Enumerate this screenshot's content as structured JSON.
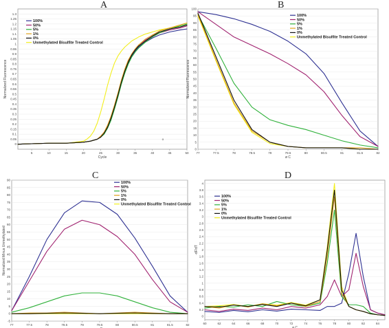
{
  "chart_data": [
    {
      "panel": "A",
      "type": "line",
      "xlabel": "Cycle",
      "ylabel": "Normalized Fluorescence",
      "xlim": [
        1,
        50
      ],
      "ylim": [
        -0.05,
        1.35
      ],
      "xticks": [
        5,
        10,
        15,
        20,
        25,
        30,
        35,
        40,
        45,
        50
      ],
      "yticks": [
        0,
        0.05,
        0.1,
        0.15,
        0.2,
        0.25,
        0.3,
        0.35,
        0.4,
        0.45,
        0.5,
        0.55,
        0.6,
        0.65,
        0.7,
        0.75,
        0.8,
        0.85,
        0.9,
        0.95,
        1,
        1.05,
        1.1,
        1.15,
        1.2,
        1.25,
        1.3
      ],
      "annotations": [
        {
          "text": "o",
          "x": 43,
          "y": 0.04
        }
      ],
      "series": [
        {
          "name": "100%",
          "color": "#2e3192",
          "x": [
            1,
            5,
            10,
            15,
            20,
            22,
            24,
            25,
            26,
            27,
            28,
            29,
            30,
            31,
            32,
            33,
            34,
            35,
            36,
            38,
            40,
            42,
            45,
            48,
            50
          ],
          "y": [
            0,
            0.005,
            0.01,
            0.01,
            0.02,
            0.03,
            0.05,
            0.07,
            0.11,
            0.17,
            0.25,
            0.36,
            0.48,
            0.61,
            0.72,
            0.81,
            0.88,
            0.93,
            0.97,
            1.02,
            1.06,
            1.09,
            1.12,
            1.14,
            1.15
          ]
        },
        {
          "name": "50%",
          "color": "#a0226f",
          "x": [
            1,
            5,
            10,
            15,
            20,
            22,
            24,
            25,
            26,
            27,
            28,
            29,
            30,
            31,
            32,
            33,
            34,
            35,
            36,
            38,
            40,
            42,
            45,
            48,
            50
          ],
          "y": [
            0,
            0.005,
            0.01,
            0.01,
            0.02,
            0.03,
            0.05,
            0.08,
            0.12,
            0.18,
            0.27,
            0.38,
            0.5,
            0.63,
            0.74,
            0.83,
            0.9,
            0.95,
            0.99,
            1.04,
            1.08,
            1.11,
            1.14,
            1.16,
            1.18
          ]
        },
        {
          "name": "5%",
          "color": "#2fb13a",
          "x": [
            1,
            5,
            10,
            15,
            20,
            22,
            24,
            25,
            26,
            27,
            28,
            29,
            30,
            31,
            32,
            33,
            34,
            35,
            36,
            38,
            40,
            42,
            45,
            48,
            50
          ],
          "y": [
            0,
            0.005,
            0.01,
            0.01,
            0.02,
            0.03,
            0.05,
            0.07,
            0.1,
            0.16,
            0.24,
            0.35,
            0.47,
            0.6,
            0.71,
            0.8,
            0.87,
            0.92,
            0.96,
            1.02,
            1.07,
            1.11,
            1.15,
            1.18,
            1.2
          ]
        },
        {
          "name": "1%",
          "color": "#e0a21a",
          "x": [
            1,
            5,
            10,
            15,
            20,
            22,
            24,
            25,
            26,
            27,
            28,
            29,
            30,
            31,
            32,
            33,
            34,
            35,
            36,
            38,
            40,
            42,
            45,
            48,
            50
          ],
          "y": [
            0,
            0.005,
            0.01,
            0.01,
            0.02,
            0.03,
            0.05,
            0.08,
            0.12,
            0.19,
            0.28,
            0.39,
            0.51,
            0.64,
            0.75,
            0.84,
            0.9,
            0.95,
            0.99,
            1.05,
            1.09,
            1.13,
            1.16,
            1.19,
            1.21
          ]
        },
        {
          "name": "0%",
          "color": "#111111",
          "x": [
            1,
            5,
            10,
            15,
            20,
            22,
            24,
            25,
            26,
            27,
            28,
            29,
            30,
            31,
            32,
            33,
            34,
            35,
            36,
            38,
            40,
            42,
            45,
            48,
            50
          ],
          "y": [
            0,
            0.005,
            0.01,
            0.01,
            0.02,
            0.03,
            0.05,
            0.07,
            0.11,
            0.17,
            0.26,
            0.37,
            0.49,
            0.62,
            0.73,
            0.82,
            0.89,
            0.94,
            0.98,
            1.03,
            1.08,
            1.12,
            1.15,
            1.17,
            1.19
          ]
        },
        {
          "name": "Unmethylated Bisulfite Treated Control",
          "color": "#f2ee1a",
          "x": [
            1,
            5,
            10,
            15,
            20,
            21,
            22,
            23,
            24,
            25,
            26,
            27,
            28,
            29,
            30,
            31,
            32,
            34,
            36,
            38,
            40,
            42,
            45,
            48,
            50
          ],
          "y": [
            0,
            0.005,
            0.01,
            0.01,
            0.03,
            0.05,
            0.08,
            0.13,
            0.21,
            0.32,
            0.45,
            0.59,
            0.71,
            0.81,
            0.88,
            0.93,
            0.97,
            1.03,
            1.07,
            1.1,
            1.12,
            1.14,
            1.16,
            1.18,
            1.2
          ]
        }
      ]
    },
    {
      "panel": "B",
      "type": "line",
      "xlabel": "ø C",
      "ylabel": "Normalized Fluorescence",
      "xlim": [
        77,
        82
      ],
      "ylim": [
        0,
        100
      ],
      "xticks": [
        77,
        77.5,
        78,
        78.5,
        79,
        79.5,
        80,
        80.5,
        81,
        81.5,
        82
      ],
      "xtick_labels": [
        "77",
        "77.5",
        "78",
        "78.5",
        "79",
        "79.5",
        "80",
        "80.5",
        "81",
        "81.5",
        "82"
      ],
      "yticks": [
        0,
        5,
        10,
        15,
        20,
        25,
        30,
        35,
        40,
        45,
        50,
        55,
        60,
        65,
        70,
        75,
        80,
        85,
        90,
        95,
        100
      ],
      "series": [
        {
          "name": "100%",
          "color": "#2e3192",
          "x": [
            77,
            77.5,
            78,
            78.5,
            79,
            79.5,
            80,
            80.5,
            81,
            81.5,
            82
          ],
          "y": [
            98,
            96,
            93,
            89,
            84,
            77,
            68,
            54,
            33,
            13,
            2
          ]
        },
        {
          "name": "50%",
          "color": "#a0226f",
          "x": [
            77,
            77.5,
            78,
            78.5,
            79,
            79.5,
            80,
            80.5,
            81,
            81.5,
            82
          ],
          "y": [
            98,
            89,
            80,
            74,
            68,
            61,
            53,
            41,
            24,
            9,
            2
          ]
        },
        {
          "name": "5%",
          "color": "#2fb13a",
          "x": [
            77,
            77.5,
            78,
            78.5,
            79,
            79.5,
            80,
            80.5,
            81,
            81.5,
            82
          ],
          "y": [
            96,
            72,
            47,
            30,
            21,
            17,
            14,
            10,
            6,
            3,
            1
          ]
        },
        {
          "name": "1%",
          "color": "#e0a21a",
          "x": [
            77,
            77.5,
            78,
            78.5,
            79,
            79.5,
            80,
            80.5,
            81,
            81.5,
            82
          ],
          "y": [
            96,
            64,
            33,
            13,
            5,
            2,
            1,
            1,
            1,
            1,
            0
          ]
        },
        {
          "name": "0%",
          "color": "#111111",
          "x": [
            77,
            77.5,
            78,
            78.5,
            79,
            79.5,
            80,
            80.5,
            81,
            81.5,
            82
          ],
          "y": [
            97,
            66,
            35,
            14,
            5,
            2,
            1,
            1,
            1,
            0,
            0
          ]
        },
        {
          "name": "Unmethylated Bisulfite Treated Control",
          "color": "#f2ee1a",
          "x": [
            77,
            77.5,
            78,
            78.5,
            79,
            79.5,
            80,
            80.5,
            81,
            81.5,
            82
          ],
          "y": [
            95,
            63,
            32,
            12,
            4,
            2,
            1,
            1,
            1,
            0,
            0
          ]
        }
      ]
    },
    {
      "panel": "C",
      "type": "line",
      "xlabel": "ø C",
      "ylabel": "Normalized Minus Unmethylated",
      "xlim": [
        77,
        82
      ],
      "ylim": [
        -5,
        90
      ],
      "xticks": [
        77,
        77.5,
        78,
        78.5,
        79,
        79.5,
        80,
        80.5,
        81,
        81.5,
        82
      ],
      "xtick_labels": [
        "77",
        "77.5",
        "78",
        "78.5",
        "79",
        "79.5",
        "80",
        "80.5",
        "81",
        "81.5",
        "82"
      ],
      "yticks": [
        -5,
        0,
        5,
        10,
        15,
        20,
        25,
        30,
        35,
        40,
        45,
        50,
        55,
        60,
        65,
        70,
        75,
        80,
        85,
        90
      ],
      "series": [
        {
          "name": "100%",
          "color": "#2e3192",
          "x": [
            77,
            77.5,
            78,
            78.5,
            79,
            79.5,
            80,
            80.5,
            81,
            81.5,
            82
          ],
          "y": [
            2,
            25,
            50,
            68,
            76,
            75,
            67,
            51,
            32,
            12,
            1
          ]
        },
        {
          "name": "50%",
          "color": "#a0226f",
          "x": [
            77,
            77.5,
            78,
            78.5,
            79,
            79.5,
            80,
            80.5,
            81,
            81.5,
            82
          ],
          "y": [
            2,
            22,
            42,
            57,
            63,
            60,
            52,
            40,
            23,
            8,
            1
          ]
        },
        {
          "name": "5%",
          "color": "#2fb13a",
          "x": [
            77,
            77.5,
            78,
            78.5,
            79,
            79.5,
            80,
            80.5,
            81,
            81.5,
            82
          ],
          "y": [
            1,
            4,
            8,
            12,
            14,
            14,
            12,
            8,
            4,
            1,
            0
          ]
        },
        {
          "name": "1%",
          "color": "#e0a21a",
          "x": [
            77,
            77.5,
            78,
            78.5,
            79,
            79.5,
            80,
            80.5,
            81,
            81.5,
            82
          ],
          "y": [
            0,
            0.5,
            0.5,
            1,
            0.5,
            0,
            0.5,
            1,
            0.5,
            0,
            0
          ]
        },
        {
          "name": "0%",
          "color": "#111111",
          "x": [
            77,
            77.5,
            78,
            78.5,
            79,
            79.5,
            80,
            80.5,
            81,
            81.5,
            82
          ],
          "y": [
            0,
            0,
            0.3,
            0.5,
            0.3,
            0,
            0.3,
            0.5,
            0.2,
            0,
            0
          ]
        },
        {
          "name": "Unmethylated Bisulfite Treated Control",
          "color": "#f2ee1a",
          "x": [
            77,
            77.5,
            78,
            78.5,
            79,
            79.5,
            80,
            80.5,
            81,
            81.5,
            82
          ],
          "y": [
            0,
            0,
            0,
            0,
            0,
            0,
            0,
            0,
            0,
            0,
            0
          ]
        }
      ]
    },
    {
      "panel": "D",
      "type": "line",
      "xlabel": "ø C",
      "ylabel": "-dF/dT",
      "xlim": [
        60,
        85
      ],
      "ylim": [
        -0.1,
        4.1
      ],
      "xticks": [
        60,
        62,
        64,
        66,
        68,
        70,
        72,
        74,
        76,
        78,
        80,
        82,
        84
      ],
      "yticks": [
        0,
        0.2,
        0.4,
        0.6,
        0.8,
        1,
        1.2,
        1.4,
        1.6,
        1.8,
        2,
        2.2,
        2.4,
        2.6,
        2.8,
        3,
        3.2,
        3.4,
        3.6,
        3.8,
        4
      ],
      "series": [
        {
          "name": "100%",
          "color": "#2e3192",
          "x": [
            60,
            62,
            64,
            66,
            68,
            70,
            72,
            74,
            76,
            77,
            78,
            79,
            80,
            81,
            82,
            83,
            84,
            85
          ],
          "y": [
            0.15,
            0.12,
            0.18,
            0.14,
            0.2,
            0.16,
            0.22,
            0.2,
            0.18,
            0.3,
            0.3,
            0.4,
            1.3,
            2.5,
            1.2,
            0.2,
            0.1,
            0.05
          ]
        },
        {
          "name": "50%",
          "color": "#a0226f",
          "x": [
            60,
            62,
            64,
            66,
            68,
            70,
            72,
            74,
            76,
            77,
            78,
            79,
            80,
            81,
            82,
            83,
            84,
            85
          ],
          "y": [
            0.2,
            0.15,
            0.22,
            0.18,
            0.25,
            0.2,
            0.3,
            0.25,
            0.35,
            0.6,
            1.1,
            0.6,
            0.8,
            1.9,
            0.9,
            0.2,
            0.1,
            0.05
          ]
        },
        {
          "name": "5%",
          "color": "#2fb13a",
          "x": [
            60,
            62,
            64,
            66,
            68,
            70,
            72,
            74,
            76,
            77,
            78,
            79,
            80,
            81,
            82,
            83,
            84,
            85
          ],
          "y": [
            0.25,
            0.3,
            0.28,
            0.35,
            0.3,
            0.45,
            0.35,
            0.3,
            0.4,
            1.6,
            3.2,
            0.6,
            0.35,
            0.35,
            0.3,
            0.1,
            0.05,
            0.03
          ]
        },
        {
          "name": "1%",
          "color": "#e0a21a",
          "x": [
            60,
            62,
            64,
            66,
            68,
            70,
            72,
            74,
            76,
            77,
            78,
            79,
            80,
            81,
            82,
            83,
            84,
            85
          ],
          "y": [
            0.3,
            0.25,
            0.35,
            0.28,
            0.38,
            0.32,
            0.4,
            0.3,
            0.45,
            1.8,
            3.6,
            0.7,
            0.3,
            0.2,
            0.15,
            0.08,
            0.05,
            0.03
          ]
        },
        {
          "name": "0%",
          "color": "#111111",
          "x": [
            60,
            62,
            64,
            66,
            68,
            70,
            72,
            74,
            76,
            77,
            78,
            79,
            80,
            81,
            82,
            83,
            84,
            85
          ],
          "y": [
            0.3,
            0.28,
            0.34,
            0.3,
            0.36,
            0.3,
            0.4,
            0.32,
            0.5,
            2,
            3.8,
            0.8,
            0.3,
            0.2,
            0.15,
            0.08,
            0.05,
            0.03
          ]
        },
        {
          "name": "Unmethylated Bisulfite Treated Control",
          "color": "#f2ee1a",
          "x": [
            60,
            62,
            64,
            66,
            68,
            70,
            72,
            74,
            76,
            77,
            78,
            79,
            80,
            81,
            82,
            83,
            84,
            85
          ],
          "y": [
            0.3,
            0.32,
            0.36,
            0.3,
            0.38,
            0.34,
            0.42,
            0.34,
            0.5,
            2.1,
            4,
            0.9,
            0.3,
            0.2,
            0.15,
            0.08,
            0.05,
            0.03
          ]
        }
      ]
    }
  ]
}
